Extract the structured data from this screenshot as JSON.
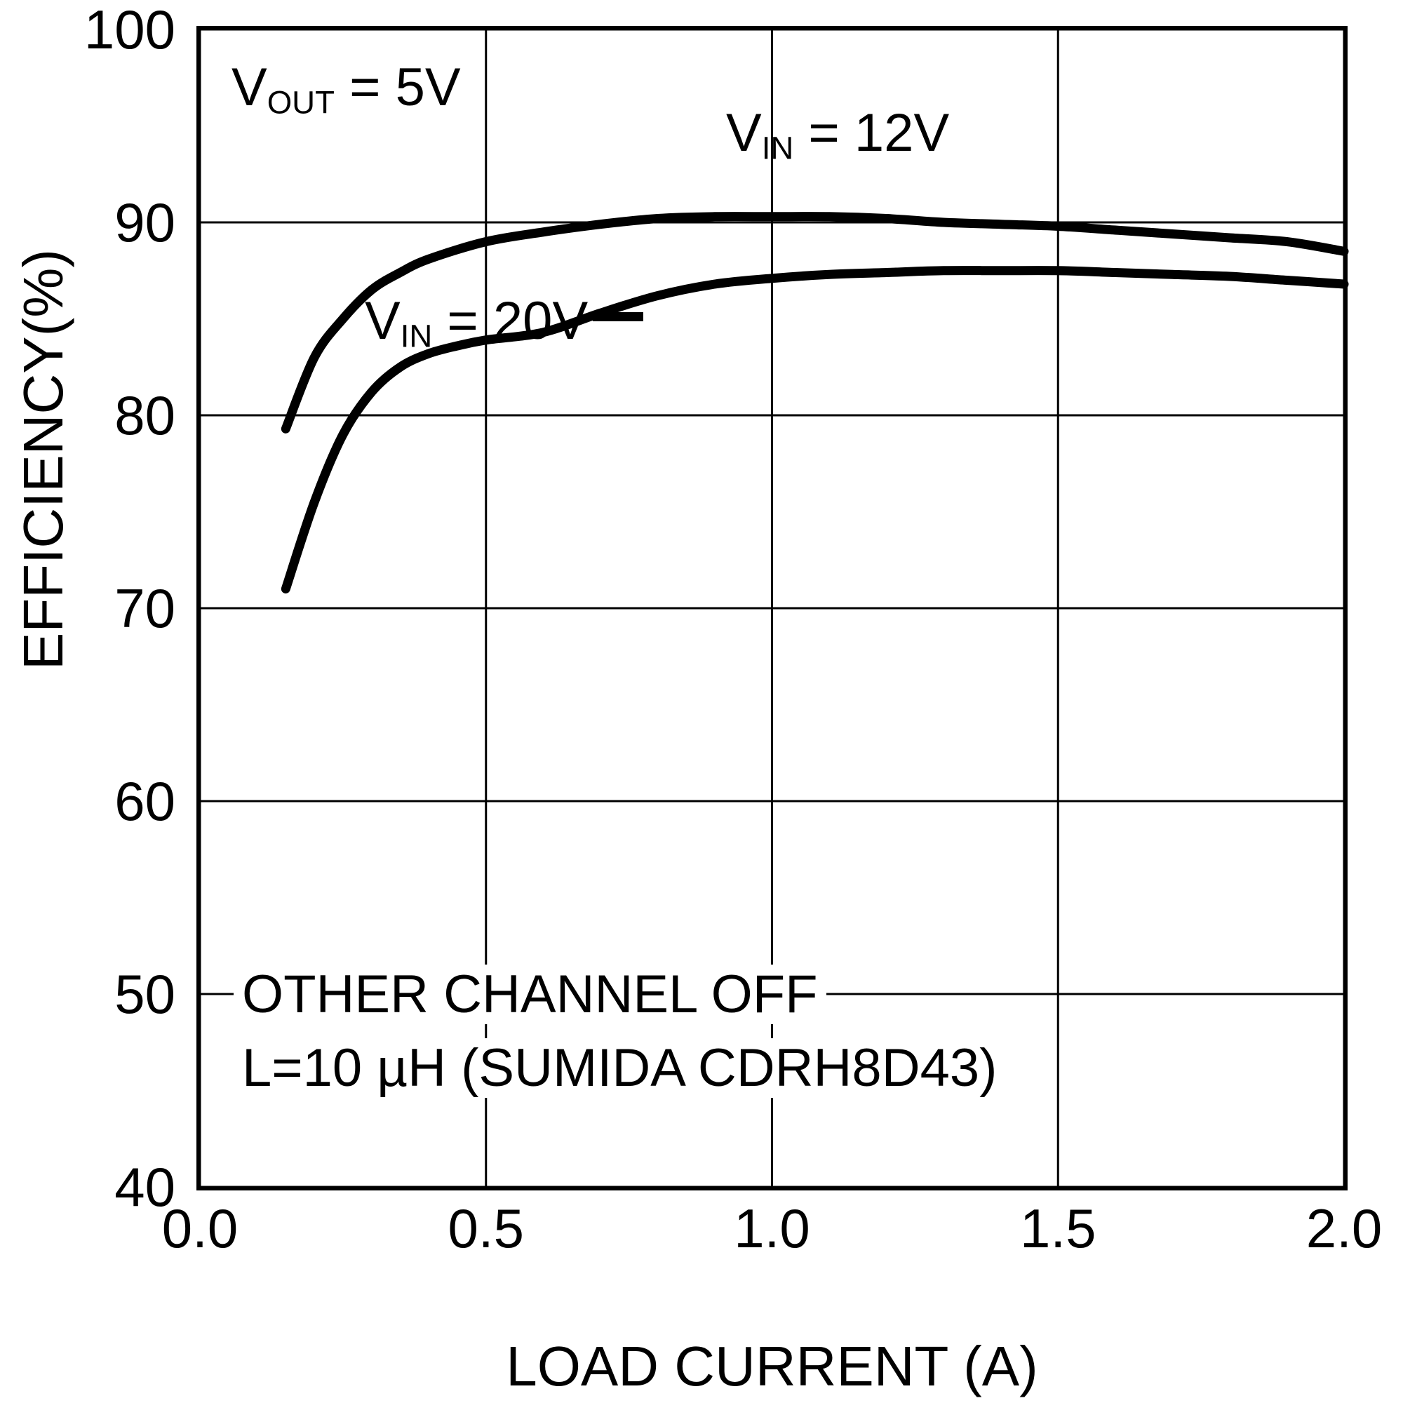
{
  "chart_data": {
    "type": "line",
    "title": "",
    "xlabel": "LOAD CURRENT (A)",
    "ylabel": "EFFICIENCY(%)",
    "xlim": [
      0.0,
      2.0
    ],
    "ylim": [
      40,
      100
    ],
    "grid": true,
    "x_ticks": [
      0.0,
      0.5,
      1.0,
      1.5,
      2.0
    ],
    "x_tick_labels": [
      "0.0",
      "0.5",
      "1.0",
      "1.5",
      "2.0"
    ],
    "y_ticks": [
      40,
      50,
      60,
      70,
      80,
      90,
      100
    ],
    "y_tick_labels": [
      "40",
      "50",
      "60",
      "70",
      "80",
      "90",
      "100"
    ],
    "series": [
      {
        "name": "VIN = 12V",
        "x": [
          0.15,
          0.2,
          0.25,
          0.3,
          0.35,
          0.4,
          0.5,
          0.6,
          0.7,
          0.8,
          0.9,
          1.0,
          1.1,
          1.2,
          1.3,
          1.4,
          1.5,
          1.6,
          1.7,
          1.8,
          1.9,
          2.0
        ],
        "y": [
          79.3,
          83.0,
          85.0,
          86.5,
          87.4,
          88.1,
          89.0,
          89.5,
          89.9,
          90.2,
          90.3,
          90.3,
          90.3,
          90.2,
          90.0,
          89.9,
          89.8,
          89.6,
          89.4,
          89.2,
          89.0,
          88.5
        ]
      },
      {
        "name": "VIN = 20V",
        "x": [
          0.15,
          0.2,
          0.25,
          0.3,
          0.35,
          0.4,
          0.45,
          0.5,
          0.6,
          0.7,
          0.8,
          0.9,
          1.0,
          1.1,
          1.2,
          1.3,
          1.4,
          1.5,
          1.6,
          1.7,
          1.8,
          1.9,
          2.0
        ],
        "y": [
          71.0,
          75.5,
          79.0,
          81.2,
          82.5,
          83.2,
          83.6,
          83.9,
          84.3,
          85.3,
          86.2,
          86.8,
          87.1,
          87.3,
          87.4,
          87.5,
          87.5,
          87.5,
          87.4,
          87.3,
          87.2,
          87.0,
          86.8
        ]
      }
    ],
    "annotations": {
      "vout": {
        "base": "V",
        "sub": "OUT",
        "rest": " = 5V"
      },
      "vin12": {
        "base": "V",
        "sub": "IN",
        "rest": " = 12V"
      },
      "vin20": {
        "base": "V",
        "sub": "IN",
        "rest": " = 20V"
      },
      "note1": "OTHER CHANNEL OFF",
      "note2": "L=10 µH (SUMIDA CDRH8D43)"
    }
  }
}
